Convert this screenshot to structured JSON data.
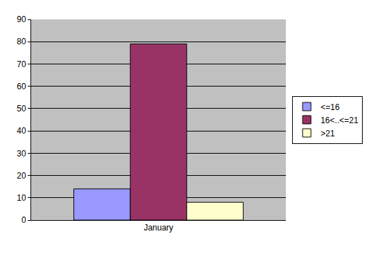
{
  "chart_data": {
    "type": "bar",
    "categories": [
      "January"
    ],
    "series": [
      {
        "name": "<=16",
        "color": "#9999ff",
        "values": [
          14
        ]
      },
      {
        "name": "16<..<=21",
        "color": "#993366",
        "values": [
          79
        ]
      },
      {
        "name": ">21",
        "color": "#ffffcc",
        "values": [
          8
        ]
      }
    ],
    "ylim": [
      0,
      90
    ],
    "yticks": [
      0,
      10,
      20,
      30,
      40,
      50,
      60,
      70,
      80,
      90
    ],
    "grid": true,
    "legend": "right"
  }
}
